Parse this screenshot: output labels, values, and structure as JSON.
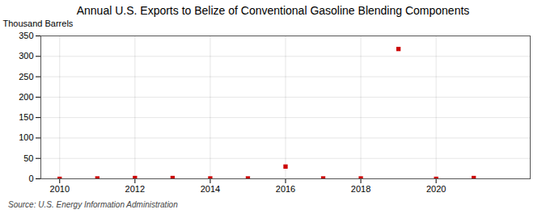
{
  "chart_data": {
    "type": "scatter",
    "title": "Annual U.S. Exports to Belize of Conventional Gasoline Blending Components",
    "ylabel": "Thousand Barrels",
    "source": "Source: U.S. Energy Information Administration",
    "x": [
      2010,
      2011,
      2012,
      2013,
      2014,
      2015,
      2016,
      2017,
      2018,
      2019,
      2020,
      2021
    ],
    "values": [
      0,
      1,
      2,
      2,
      1,
      1,
      30,
      1,
      1,
      318,
      0,
      2
    ],
    "color": "#cc0000",
    "marker": "square",
    "xlim": [
      2009.5,
      2022.5
    ],
    "xticks": [
      2010,
      2012,
      2014,
      2016,
      2018,
      2020
    ],
    "ylim": [
      0,
      350
    ],
    "yticks": [
      0,
      50,
      100,
      150,
      200,
      250,
      300,
      350
    ],
    "grid": true
  }
}
